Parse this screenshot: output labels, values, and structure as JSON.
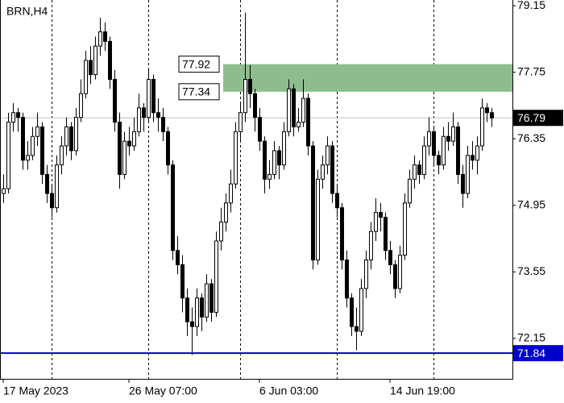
{
  "chart_data": {
    "type": "candlestick",
    "title": "BRN,H4",
    "bull_color": "#ffffff",
    "bear_color": "#000000",
    "ylim": [
      71.3,
      79.27
    ],
    "yticks": [
      79.15,
      77.75,
      76.35,
      74.95,
      73.55,
      72.15
    ],
    "xticks": [
      {
        "value": 0,
        "label": "17 May 2023"
      },
      {
        "value": 26,
        "label": "26 May 07:00"
      },
      {
        "value": 53,
        "label": "6 Jun 03:00"
      },
      {
        "value": 80,
        "label": "14 Jun 19:00"
      }
    ],
    "xgrid": [
      10,
      30,
      49,
      69,
      89
    ],
    "zone": {
      "start": 46,
      "high": 77.92,
      "low": 77.34,
      "color": "#8fbc8f"
    },
    "current_price": {
      "value": 76.79,
      "color": "#000000"
    },
    "level": {
      "value": 71.84,
      "color": "#0000cc"
    },
    "candles": [
      [
        75.2,
        75.6,
        75.0,
        75.3
      ],
      [
        75.3,
        76.9,
        75.2,
        76.7
      ],
      [
        76.7,
        77.1,
        76.5,
        76.9
      ],
      [
        76.9,
        77.0,
        76.5,
        76.8
      ],
      [
        76.8,
        76.9,
        75.7,
        75.9
      ],
      [
        75.9,
        76.3,
        75.7,
        76.0
      ],
      [
        76.0,
        76.6,
        75.9,
        76.4
      ],
      [
        76.4,
        76.9,
        76.2,
        76.6
      ],
      [
        76.6,
        76.7,
        75.4,
        75.6
      ],
      [
        75.6,
        75.8,
        75.0,
        75.2
      ],
      [
        75.2,
        75.4,
        74.7,
        74.9
      ],
      [
        74.9,
        76.0,
        74.8,
        75.8
      ],
      [
        75.8,
        76.4,
        75.6,
        76.2
      ],
      [
        76.2,
        76.8,
        76.0,
        76.6
      ],
      [
        76.6,
        76.7,
        75.9,
        76.1
      ],
      [
        76.1,
        77.0,
        76.0,
        76.8
      ],
      [
        76.8,
        77.6,
        76.7,
        77.3
      ],
      [
        77.3,
        78.2,
        77.2,
        78.0
      ],
      [
        78.0,
        78.3,
        77.5,
        77.7
      ],
      [
        77.7,
        78.5,
        77.6,
        78.3
      ],
      [
        78.3,
        78.9,
        78.1,
        78.6
      ],
      [
        78.6,
        78.8,
        78.2,
        78.4
      ],
      [
        78.4,
        78.5,
        77.4,
        77.6
      ],
      [
        77.6,
        77.8,
        76.5,
        76.7
      ],
      [
        76.7,
        76.9,
        75.3,
        75.6
      ],
      [
        75.6,
        76.5,
        75.5,
        76.3
      ],
      [
        76.3,
        76.6,
        76.0,
        76.2
      ],
      [
        76.2,
        76.8,
        76.1,
        76.5
      ],
      [
        76.5,
        77.3,
        76.4,
        77.0
      ],
      [
        77.0,
        77.1,
        76.5,
        76.8
      ],
      [
        76.8,
        77.8,
        76.7,
        77.6
      ],
      [
        77.6,
        77.7,
        76.7,
        76.9
      ],
      [
        76.9,
        77.2,
        76.5,
        76.8
      ],
      [
        76.8,
        77.0,
        76.3,
        76.5
      ],
      [
        76.5,
        76.6,
        75.6,
        75.8
      ],
      [
        75.8,
        75.9,
        73.8,
        74.0
      ],
      [
        74.0,
        74.3,
        73.5,
        73.7
      ],
      [
        73.7,
        73.9,
        72.7,
        73.0
      ],
      [
        73.0,
        73.2,
        72.2,
        72.5
      ],
      [
        72.5,
        72.8,
        71.8,
        72.4
      ],
      [
        72.4,
        73.2,
        72.2,
        73.0
      ],
      [
        73.0,
        73.1,
        72.3,
        72.6
      ],
      [
        72.6,
        73.5,
        72.5,
        73.3
      ],
      [
        73.3,
        73.4,
        72.5,
        72.7
      ],
      [
        72.7,
        74.4,
        72.6,
        74.2
      ],
      [
        74.2,
        74.9,
        74.0,
        74.6
      ],
      [
        74.6,
        75.2,
        74.4,
        75.0
      ],
      [
        75.0,
        75.7,
        74.8,
        75.4
      ],
      [
        75.4,
        76.7,
        75.3,
        76.5
      ],
      [
        76.5,
        77.1,
        76.3,
        76.9
      ],
      [
        76.9,
        79.0,
        76.7,
        77.6
      ],
      [
        77.6,
        77.9,
        77.0,
        77.3
      ],
      [
        77.3,
        77.4,
        76.5,
        76.8
      ],
      [
        76.8,
        77.0,
        76.1,
        76.3
      ],
      [
        76.3,
        76.4,
        75.2,
        75.5
      ],
      [
        75.5,
        75.9,
        75.3,
        75.6
      ],
      [
        75.6,
        76.3,
        75.5,
        76.1
      ],
      [
        76.1,
        76.2,
        75.5,
        75.8
      ],
      [
        75.8,
        76.7,
        75.7,
        76.5
      ],
      [
        76.5,
        77.6,
        76.4,
        77.4
      ],
      [
        77.4,
        77.5,
        76.4,
        76.6
      ],
      [
        76.6,
        77.0,
        76.5,
        76.7
      ],
      [
        76.7,
        77.6,
        76.6,
        77.2
      ],
      [
        77.2,
        77.3,
        76.0,
        76.2
      ],
      [
        76.2,
        76.3,
        73.6,
        73.8
      ],
      [
        73.8,
        75.7,
        73.7,
        75.5
      ],
      [
        75.5,
        76.0,
        75.3,
        75.8
      ],
      [
        75.8,
        76.4,
        75.6,
        76.2
      ],
      [
        76.2,
        76.3,
        75.0,
        75.2
      ],
      [
        75.2,
        75.4,
        74.7,
        74.9
      ],
      [
        74.9,
        75.0,
        73.6,
        73.8
      ],
      [
        73.8,
        74.0,
        72.8,
        73.0
      ],
      [
        73.0,
        73.1,
        72.2,
        72.4
      ],
      [
        72.4,
        72.8,
        71.9,
        72.3
      ],
      [
        72.3,
        73.4,
        72.2,
        73.2
      ],
      [
        73.2,
        74.0,
        73.0,
        73.8
      ],
      [
        73.8,
        74.6,
        73.6,
        74.4
      ],
      [
        74.4,
        75.1,
        74.2,
        74.8
      ],
      [
        74.8,
        75.0,
        74.4,
        74.7
      ],
      [
        74.7,
        74.8,
        73.8,
        74.0
      ],
      [
        74.0,
        74.2,
        73.5,
        73.7
      ],
      [
        73.7,
        73.8,
        73.0,
        73.2
      ],
      [
        73.2,
        74.1,
        73.1,
        73.9
      ],
      [
        73.9,
        75.2,
        73.8,
        75.0
      ],
      [
        75.0,
        75.7,
        74.9,
        75.5
      ],
      [
        75.5,
        76.0,
        75.3,
        75.8
      ],
      [
        75.8,
        75.9,
        75.4,
        75.6
      ],
      [
        75.6,
        76.4,
        75.5,
        76.2
      ],
      [
        76.2,
        76.8,
        76.0,
        76.5
      ],
      [
        76.5,
        76.6,
        75.8,
        76.0
      ],
      [
        76.0,
        76.1,
        75.6,
        75.8
      ],
      [
        75.8,
        76.6,
        75.7,
        76.4
      ],
      [
        76.4,
        76.7,
        76.1,
        76.3
      ],
      [
        76.3,
        76.9,
        76.2,
        76.6
      ],
      [
        76.6,
        76.7,
        75.4,
        75.6
      ],
      [
        75.6,
        75.8,
        74.9,
        75.2
      ],
      [
        75.2,
        76.2,
        75.1,
        76.0
      ],
      [
        76.0,
        76.3,
        75.7,
        75.9
      ],
      [
        75.9,
        76.4,
        75.6,
        76.2
      ],
      [
        76.2,
        77.2,
        76.1,
        77.0
      ],
      [
        77.0,
        77.1,
        76.7,
        76.9
      ],
      [
        76.9,
        77.0,
        76.6,
        76.79
      ]
    ]
  }
}
